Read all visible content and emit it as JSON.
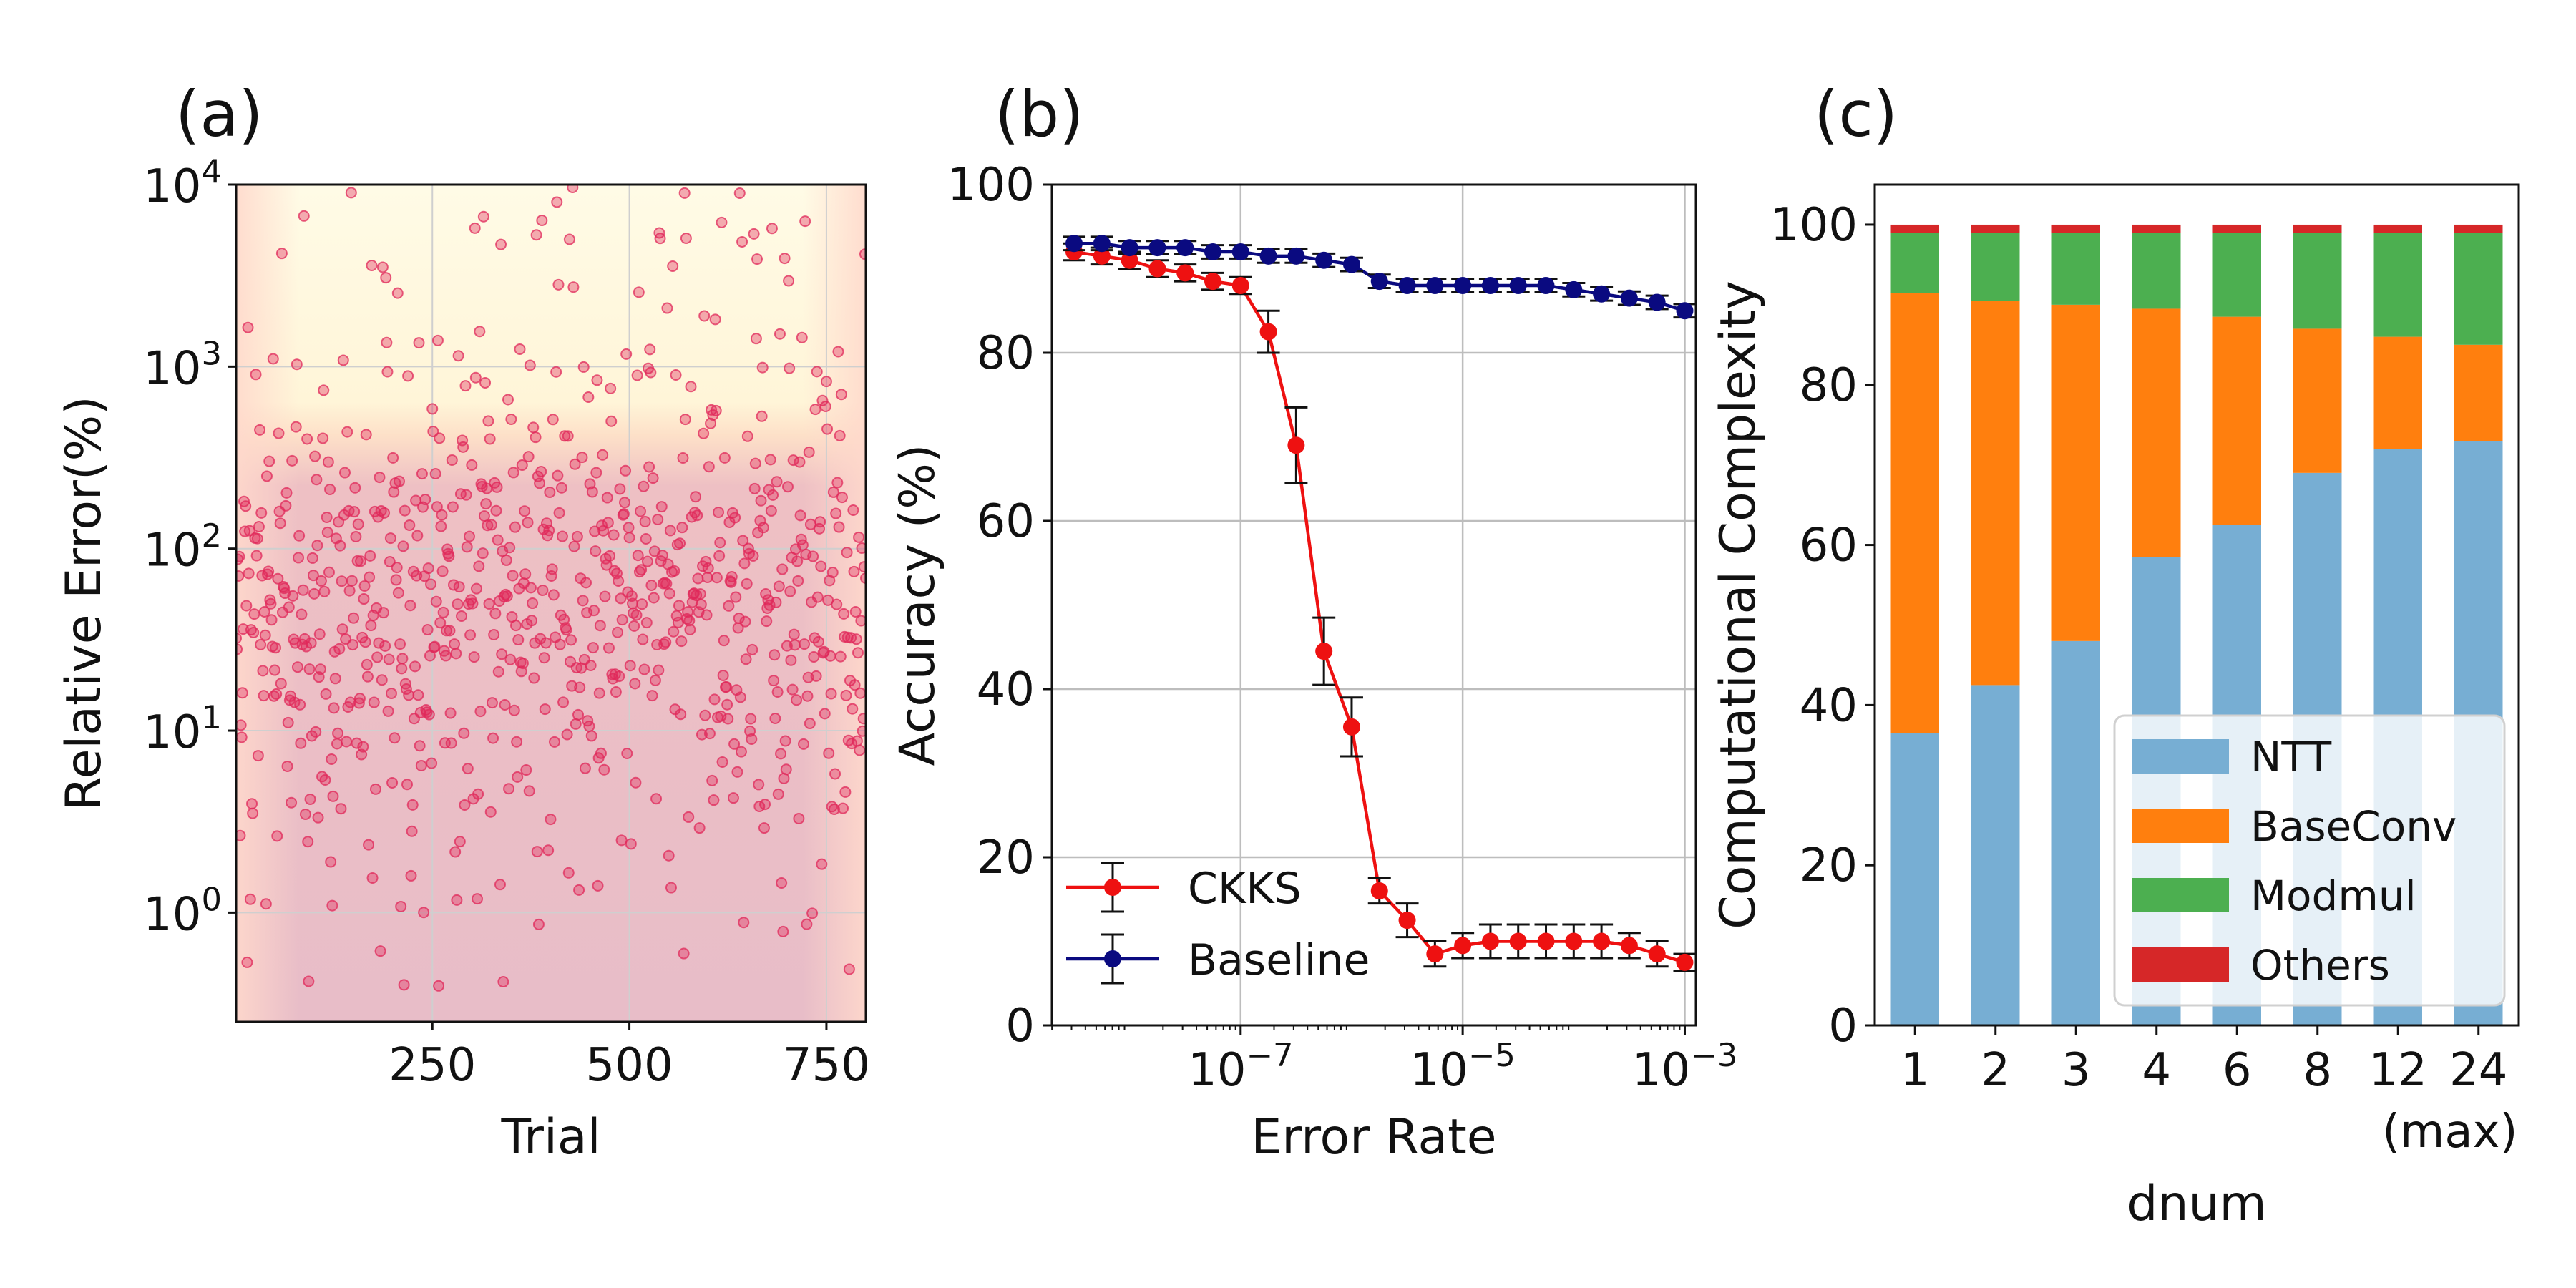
{
  "chart_data": [
    {
      "panel_label": "(a)",
      "type": "scatter",
      "xlabel": "Trial",
      "ylabel": "Relative Error(%)",
      "xlim": [
        1,
        800
      ],
      "ylim_log10": [
        -0.6,
        4
      ],
      "yscale": "log",
      "x_ticks": [
        250,
        500,
        750
      ],
      "y_ticks": [
        {
          "base": "10",
          "exp": "0",
          "log": 0
        },
        {
          "base": "10",
          "exp": "1",
          "log": 1
        },
        {
          "base": "10",
          "exp": "2",
          "log": 2
        },
        {
          "base": "10",
          "exp": "3",
          "log": 3
        },
        {
          "base": "10",
          "exp": "4",
          "log": 4
        }
      ],
      "grid": true,
      "point_color": "#e0285a",
      "n_points": 800,
      "value_summary": "roughly log-normal around 10^1.7 (50%), spread 10^-0.5 to 10^4",
      "background": "heat shading: light yellow at top, pink band below ~10^2.7"
    },
    {
      "panel_label": "(b)",
      "type": "line",
      "xlabel": "Error Rate",
      "ylabel": "Accuracy (%)",
      "xscale": "log",
      "xlim_log10": [
        -8.7,
        -2.9
      ],
      "ylim": [
        0,
        100
      ],
      "x_ticks": [
        {
          "base": "10",
          "exp": "−7",
          "log": -7
        },
        {
          "base": "10",
          "exp": "−5",
          "log": -5
        },
        {
          "base": "10",
          "exp": "−3",
          "log": -3
        }
      ],
      "y_ticks": [
        0,
        20,
        40,
        60,
        80,
        100
      ],
      "grid": true,
      "legend": "lower-left",
      "x_log10": [
        -8.5,
        -8.25,
        -8.0,
        -7.75,
        -7.5,
        -7.25,
        -7.0,
        -6.75,
        -6.5,
        -6.25,
        -6.0,
        -5.75,
        -5.5,
        -5.25,
        -5.0,
        -4.75,
        -4.5,
        -4.25,
        -4.0,
        -3.75,
        -3.5,
        -3.25,
        -3.0
      ],
      "series": [
        {
          "name": "CKKS",
          "color": "#ee1111",
          "values": [
            92,
            91.5,
            91,
            90,
            89.5,
            88.5,
            88,
            82.5,
            69,
            44.5,
            35.5,
            16,
            12.5,
            8.5,
            9.5,
            10,
            10,
            10,
            10,
            10,
            9.5,
            8.5,
            7.5
          ],
          "errors": [
            1,
            1,
            1,
            1,
            1,
            1,
            1,
            2.5,
            4.5,
            4,
            3.5,
            1.5,
            2,
            1.5,
            1.5,
            2,
            2,
            2,
            2,
            2,
            1.5,
            1.5,
            1
          ]
        },
        {
          "name": "Baseline",
          "color": "#0a0a80",
          "values": [
            93,
            93,
            92.5,
            92.5,
            92.5,
            92,
            92,
            91.5,
            91.5,
            91,
            90.5,
            88.5,
            88,
            88,
            88,
            88,
            88,
            88,
            87.5,
            87,
            86.5,
            86,
            85
          ],
          "errors": [
            0.8,
            0.8,
            0.8,
            0.8,
            0.8,
            0.8,
            0.8,
            0.8,
            0.8,
            0.8,
            0.8,
            0.8,
            0.8,
            0.8,
            0.8,
            0.8,
            0.8,
            0.8,
            0.8,
            0.8,
            0.8,
            0.8,
            0.8
          ]
        }
      ]
    },
    {
      "panel_label": "(c)",
      "type": "bar",
      "stacked": true,
      "xlabel": "dnum",
      "ylabel": "Computational Complexity",
      "ylim": [
        0,
        105
      ],
      "y_ticks": [
        0,
        20,
        40,
        60,
        80,
        100
      ],
      "categories": [
        "1",
        "2",
        "3",
        "4",
        "6",
        "8",
        "12",
        "24"
      ],
      "category_sublabels": [
        "",
        "",
        "",
        "",
        "",
        "",
        "",
        "(max)"
      ],
      "legend": "lower-right",
      "series": [
        {
          "name": "NTT",
          "color": "#77aed3",
          "values": [
            36.5,
            42.5,
            48,
            58.5,
            62.5,
            69,
            72,
            73
          ]
        },
        {
          "name": "BaseConv",
          "color": "#ff7f0e",
          "values": [
            55,
            48,
            42,
            31,
            26,
            18,
            14,
            12
          ]
        },
        {
          "name": "Modmul",
          "color": "#4caf50",
          "values": [
            7.5,
            8.5,
            9,
            9.5,
            10.5,
            12,
            13,
            14
          ]
        },
        {
          "name": "Others",
          "color": "#d62728",
          "values": [
            1,
            1,
            1,
            1,
            1,
            1,
            1,
            1
          ]
        }
      ]
    }
  ]
}
